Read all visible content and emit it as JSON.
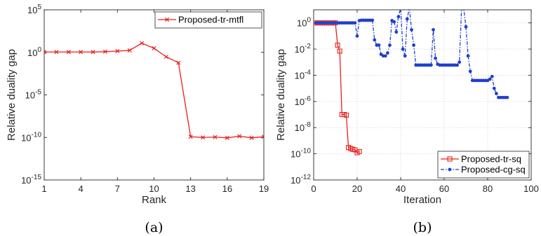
{
  "chart_data": [
    {
      "type": "line",
      "caption": "(a)",
      "xlabel": "Rank",
      "ylabel": "Relative duality gap",
      "xlim": [
        1,
        19
      ],
      "ylim_log10": [
        -15,
        5
      ],
      "y_scale": "log",
      "grid": false,
      "legend_placement": "top-right",
      "xticks": [
        1,
        4,
        7,
        10,
        13,
        16,
        19
      ],
      "xtick_labels": [
        "1",
        "4",
        "7",
        "10",
        "13",
        "16",
        "19"
      ],
      "yticks_log10": [
        -15,
        -10,
        -5,
        0,
        5
      ],
      "ytick_labels": [
        {
          "base": "10",
          "exp": "-15"
        },
        {
          "base": "10",
          "exp": "-10"
        },
        {
          "base": "10",
          "exp": "-5"
        },
        {
          "base": "10",
          "exp": "0"
        },
        {
          "base": "10",
          "exp": "5"
        }
      ],
      "series": [
        {
          "name": "Proposed-tr-mtfl",
          "color": "#e8201c",
          "marker": "x",
          "line": "solid",
          "x": [
            1,
            2,
            3,
            4,
            5,
            6,
            7,
            8,
            9,
            10,
            11,
            12,
            13,
            14,
            15,
            16,
            17,
            18,
            19
          ],
          "y": [
            1.1,
            1.1,
            1.1,
            1.1,
            1.1,
            1.2,
            1.4,
            1.7,
            12,
            3,
            0.3,
            0.06,
            1.2e-10,
            1e-10,
            1.1e-10,
            9e-11,
            1.4e-10,
            9e-11,
            1.2e-10
          ]
        }
      ]
    },
    {
      "type": "line",
      "caption": "(b)",
      "xlabel": "Iteration",
      "ylabel": "Relative duality gap",
      "xlim": [
        0,
        100
      ],
      "ylim_log10": [
        -12,
        1
      ],
      "y_scale": "log",
      "grid": true,
      "legend_placement": "bottom-right",
      "xticks": [
        0,
        20,
        40,
        60,
        80,
        100
      ],
      "xtick_labels": [
        "0",
        "20",
        "40",
        "60",
        "80",
        "100"
      ],
      "yticks_log10": [
        -12,
        -10,
        -8,
        -6,
        -4,
        -2,
        0
      ],
      "ytick_labels": [
        {
          "base": "10",
          "exp": "-12"
        },
        {
          "base": "10",
          "exp": "-10"
        },
        {
          "base": "10",
          "exp": "-8"
        },
        {
          "base": "10",
          "exp": "-6"
        },
        {
          "base": "10",
          "exp": "-4"
        },
        {
          "base": "10",
          "exp": "-2"
        },
        {
          "base": "10",
          "exp": "0"
        }
      ],
      "series": [
        {
          "name": "Proposed-tr-sq",
          "color": "#e8201c",
          "marker": "square-open",
          "line": "solid",
          "x": [
            1,
            2,
            3,
            4,
            5,
            6,
            7,
            8,
            9,
            10,
            11,
            12,
            13,
            14,
            15,
            16,
            17,
            18,
            19,
            20,
            21
          ],
          "y": [
            1,
            1,
            1,
            1,
            1,
            1,
            1,
            1,
            1,
            1,
            0.02,
            0.007,
            1e-07,
            1e-07,
            9e-08,
            3e-10,
            2.5e-10,
            2.2e-10,
            2e-10,
            1.2e-10,
            1.5e-10
          ]
        },
        {
          "name": "Proposed-cg-sq",
          "color": "#1f3fd0",
          "marker": "dot",
          "line": "dash-dot",
          "x": [
            1,
            2,
            3,
            4,
            5,
            6,
            7,
            8,
            9,
            10,
            11,
            12,
            13,
            14,
            15,
            16,
            17,
            18,
            19,
            20,
            21,
            22,
            23,
            24,
            25,
            26,
            27,
            28,
            29,
            30,
            31,
            32,
            33,
            34,
            35,
            36,
            37,
            38,
            39,
            40,
            41,
            42,
            43,
            44,
            45,
            46,
            47,
            48,
            49,
            50,
            51,
            52,
            53,
            54,
            55,
            56,
            57,
            58,
            59,
            60,
            61,
            62,
            63,
            64,
            65,
            66,
            67,
            68,
            69,
            70,
            71,
            72,
            73,
            74,
            75,
            76,
            77,
            78,
            79,
            80,
            81,
            82,
            83,
            84,
            85,
            86,
            87,
            88,
            89
          ],
          "y": [
            1,
            1,
            1,
            1,
            1,
            1,
            1,
            1,
            1,
            1,
            1,
            1,
            1,
            1,
            1,
            1,
            1,
            1,
            1,
            0.1,
            1.5,
            1.6,
            1.6,
            1.6,
            1.6,
            1.6,
            1.6,
            0.05,
            0.02,
            0.02,
            0.004,
            0.003,
            0.003,
            0.005,
            0.02,
            1.5,
            1.2,
            0.2,
            3,
            15,
            0.01,
            0.003,
            2,
            15,
            0.3,
            0.02,
            0.0006,
            0.0006,
            0.0006,
            0.0006,
            0.0006,
            0.0006,
            0.0006,
            0.0006,
            0.3,
            0.002,
            0.0007,
            0.0006,
            0.0006,
            0.0006,
            0.0006,
            0.0006,
            0.0006,
            0.0006,
            0.0006,
            0.0006,
            0.001,
            15,
            12,
            0.5,
            0.003,
            0.0002,
            4e-05,
            4e-05,
            4e-05,
            4e-05,
            4e-05,
            4e-05,
            4e-05,
            4e-05,
            5e-05,
            8e-05,
            1e-05,
            4e-06,
            2e-06,
            2e-06,
            2e-06,
            2e-06,
            2e-06
          ]
        }
      ]
    }
  ]
}
